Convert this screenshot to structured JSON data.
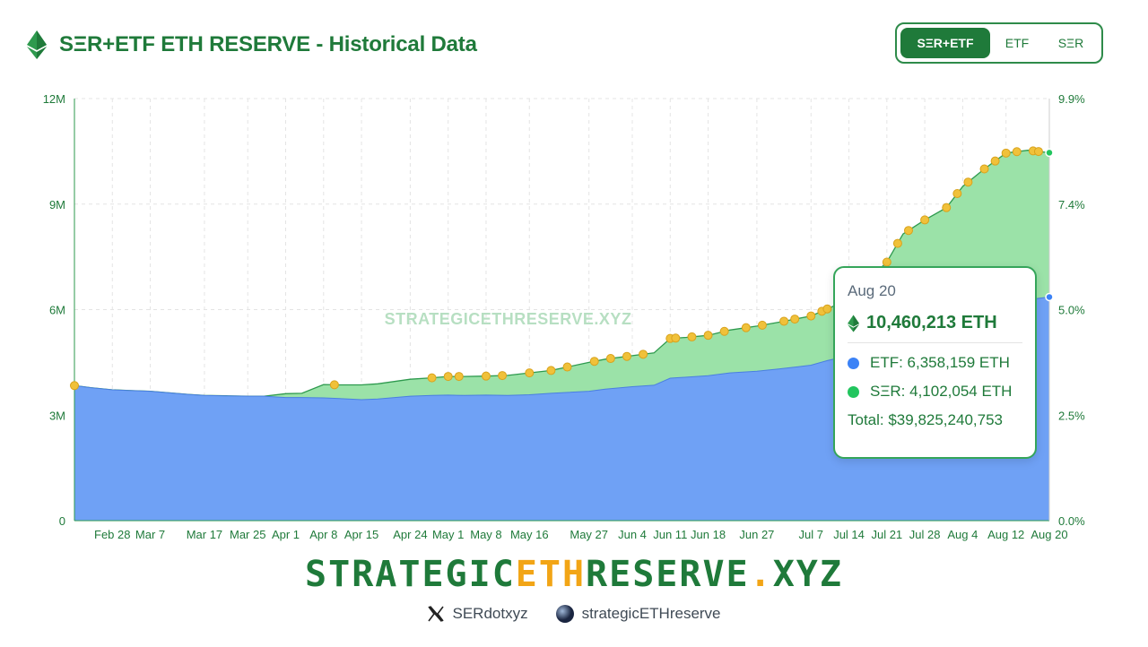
{
  "header": {
    "title": "SΞR+ETF ETH RESERVE - Historical Data",
    "toggle": [
      {
        "label": "SΞR+ETF",
        "active": true
      },
      {
        "label": "ETF",
        "active": false
      },
      {
        "label": "SΞR",
        "active": false
      }
    ]
  },
  "colors": {
    "etf": "#6fa1f5",
    "ser": "#9be2a8",
    "brand_green": "#1f7a3a",
    "purchase_dot": "#f0c13a"
  },
  "chart_data": {
    "type": "area",
    "stacked": true,
    "title": "",
    "xlabel": "",
    "ylabel": "",
    "watermark": "STRATEGICETHRESERVE.XYZ",
    "ylim": [
      0,
      12000000
    ],
    "y2lim": [
      0,
      9.9
    ],
    "y_ticks": [
      "0",
      "3M",
      "6M",
      "9M",
      "12M"
    ],
    "y2_ticks": [
      "0.0%",
      "2.5%",
      "5.0%",
      "7.4%",
      "9.9%"
    ],
    "x_ticks": [
      "Feb 28",
      "Mar 7",
      "Mar 17",
      "Mar 25",
      "Apr 1",
      "Apr 8",
      "Apr 15",
      "Apr 24",
      "May 1",
      "May 8",
      "May 16",
      "May 27",
      "Jun 4",
      "Jun 11",
      "Jun 18",
      "Jun 27",
      "Jul 7",
      "Jul 14",
      "Jul 21",
      "Jul 28",
      "Aug 4",
      "Aug 12",
      "Aug 20"
    ],
    "grid": true,
    "series": [
      {
        "name": "ETF",
        "x": [
          "Feb 21",
          "Feb 24",
          "Feb 28",
          "Mar 3",
          "Mar 7",
          "Mar 10",
          "Mar 14",
          "Mar 17",
          "Mar 21",
          "Mar 25",
          "Mar 28",
          "Apr 1",
          "Apr 4",
          "Apr 8",
          "Apr 11",
          "Apr 15",
          "Apr 18",
          "Apr 24",
          "Apr 28",
          "May 1",
          "May 4",
          "May 8",
          "May 12",
          "May 16",
          "May 20",
          "May 27",
          "May 30",
          "Jun 4",
          "Jun 8",
          "Jun 11",
          "Jun 14",
          "Jun 18",
          "Jun 22",
          "Jun 27",
          "Jul 1",
          "Jul 7",
          "Jul 10",
          "Jul 14",
          "Jul 17",
          "Jul 21",
          "Jul 24",
          "Jul 28",
          "Aug 1",
          "Aug 4",
          "Aug 8",
          "Aug 12",
          "Aug 16",
          "Aug 20"
        ],
        "values": [
          3840000,
          3780000,
          3720000,
          3700000,
          3680000,
          3640000,
          3590000,
          3560000,
          3550000,
          3540000,
          3540000,
          3500000,
          3500000,
          3490000,
          3470000,
          3440000,
          3460000,
          3540000,
          3560000,
          3570000,
          3560000,
          3570000,
          3560000,
          3580000,
          3620000,
          3680000,
          3740000,
          3810000,
          3850000,
          4050000,
          4080000,
          4120000,
          4200000,
          4250000,
          4310000,
          4420000,
          4550000,
          4690000,
          4900000,
          5050000,
          5300000,
          5450000,
          5600000,
          5750000,
          5900000,
          6150000,
          6280000,
          6358159
        ]
      },
      {
        "name": "SΞR",
        "x": [
          "Feb 21",
          "Feb 24",
          "Feb 28",
          "Mar 3",
          "Mar 7",
          "Mar 10",
          "Mar 14",
          "Mar 17",
          "Mar 21",
          "Mar 25",
          "Mar 28",
          "Apr 1",
          "Apr 4",
          "Apr 8",
          "Apr 11",
          "Apr 15",
          "Apr 18",
          "Apr 24",
          "Apr 28",
          "May 1",
          "May 4",
          "May 8",
          "May 12",
          "May 16",
          "May 20",
          "May 27",
          "May 30",
          "Jun 4",
          "Jun 8",
          "Jun 11",
          "Jun 14",
          "Jun 18",
          "Jun 22",
          "Jun 27",
          "Jul 1",
          "Jul 7",
          "Jul 10",
          "Jul 14",
          "Jul 17",
          "Jul 21",
          "Jul 24",
          "Jul 28",
          "Aug 1",
          "Aug 4",
          "Aug 8",
          "Aug 12",
          "Aug 16",
          "Aug 20"
        ],
        "values": [
          0,
          0,
          0,
          0,
          0,
          0,
          0,
          0,
          0,
          0,
          0,
          110000,
          120000,
          380000,
          390000,
          420000,
          430000,
          480000,
          500000,
          530000,
          540000,
          540000,
          570000,
          620000,
          650000,
          820000,
          850000,
          880000,
          920000,
          1130000,
          1130000,
          1150000,
          1220000,
          1280000,
          1330000,
          1400000,
          1470000,
          1600000,
          1850000,
          2300000,
          2850000,
          3100000,
          3300000,
          3750000,
          4100000,
          4300000,
          4250000,
          4102054
        ]
      }
    ],
    "purchases": [
      "Apr 10",
      "Apr 28",
      "May 1",
      "May 3",
      "May 8",
      "May 11",
      "May 16",
      "May 20",
      "May 23",
      "May 28",
      "May 31",
      "Jun 3",
      "Jun 6",
      "Jun 11",
      "Jun 12",
      "Jun 15",
      "Jun 18",
      "Jun 21",
      "Jun 25",
      "Jun 28",
      "Jul 2",
      "Jul 4",
      "Jul 7",
      "Jul 9",
      "Jul 10",
      "Jul 14",
      "Jul 18",
      "Jul 21",
      "Jul 23",
      "Jul 25",
      "Jul 28",
      "Aug 1",
      "Aug 3",
      "Aug 5",
      "Aug 8",
      "Aug 10",
      "Aug 12",
      "Aug 14",
      "Aug 17",
      "Aug 18"
    ],
    "tooltip": {
      "date": "Aug 20",
      "total_eth": "10,460,213 ETH",
      "etf_line": "ETF: 6,358,159 ETH",
      "ser_line": "SΞR: 4,102,054 ETH",
      "total_usd": "Total: $39,825,240,753"
    }
  },
  "footer": {
    "brand_left": "STRATEGIC",
    "brand_mid": "ETH",
    "brand_right": "RESERVE",
    "brand_dot": ".",
    "brand_tld": "XYZ",
    "social_x_icon": "x-logo-icon",
    "social_x": "SERdotxyz",
    "social_globe_icon": "globe-icon",
    "social_web": "strategicETHreserve"
  }
}
